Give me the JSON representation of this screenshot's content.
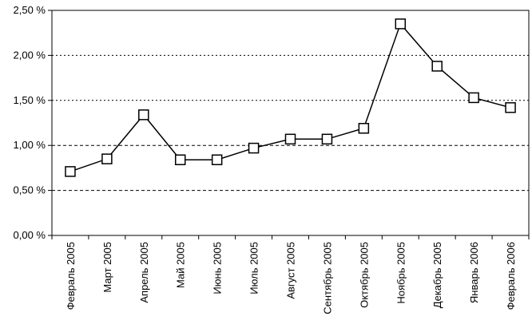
{
  "chart_data": {
    "type": "line",
    "title": "",
    "xlabel": "",
    "ylabel": "",
    "categories": [
      "Февраль 2005",
      "Март 2005",
      "Апрель 2005",
      "Май 2005",
      "Июнь 2005",
      "Июль 2005",
      "Август 2005",
      "Сентябрь 2005",
      "Октябрь 2005",
      "Ноябрь 2005",
      "Декабрь 2005",
      "Январь 2006",
      "Февраль 2006"
    ],
    "series": [
      {
        "values": [
          0.71,
          0.85,
          1.34,
          0.84,
          0.84,
          0.97,
          1.07,
          1.07,
          1.19,
          2.35,
          1.88,
          1.53,
          1.42
        ]
      }
    ],
    "ylim": [
      0,
      2.5
    ],
    "yticks": [
      0,
      0.5,
      1.0,
      1.5,
      2.0,
      2.5
    ],
    "ytick_labels": [
      "0,00 %",
      "0,50 %",
      "1,00 %",
      "1,50 %",
      "2,00 %",
      "2,50 %"
    ],
    "grid": "horizontal dashed",
    "legend": "none",
    "marker": "square",
    "line_color": "#000000"
  }
}
